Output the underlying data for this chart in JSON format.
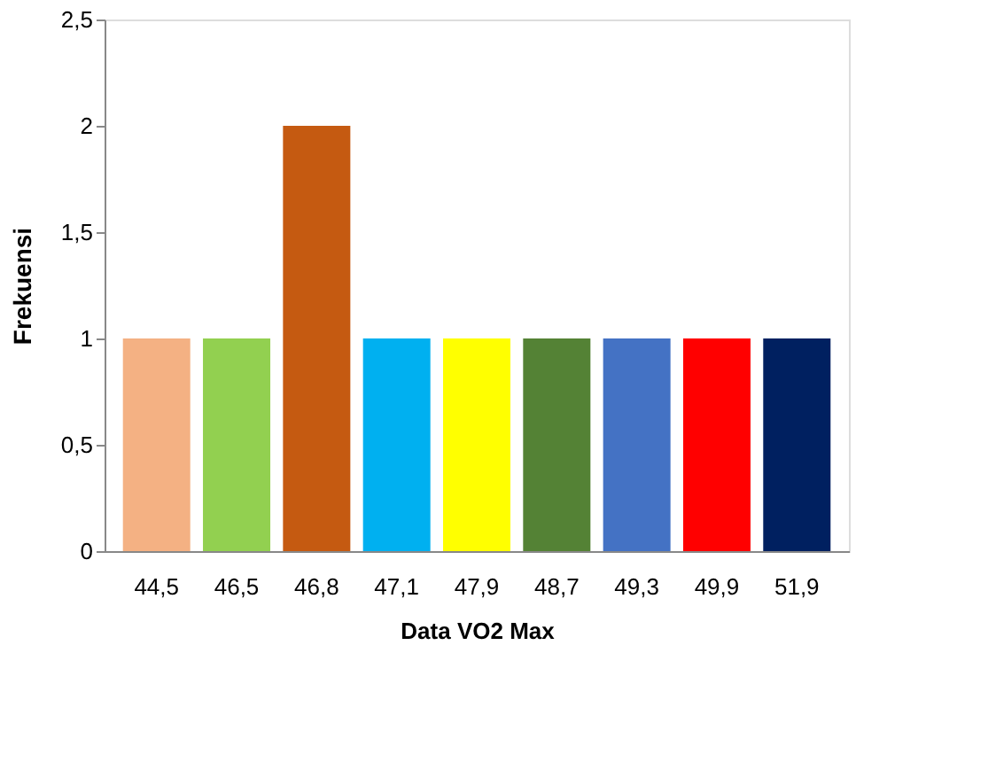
{
  "chart_data": {
    "type": "bar",
    "categories": [
      "44,5",
      "46,5",
      "46,8",
      "47,1",
      "47,9",
      "48,7",
      "49,3",
      "49,9",
      "51,9"
    ],
    "values": [
      1,
      1,
      2,
      1,
      1,
      1,
      1,
      1,
      1
    ],
    "colors": [
      "#f4b183",
      "#92d050",
      "#c55a11",
      "#00b0f0",
      "#ffff00",
      "#548235",
      "#4472c4",
      "#ff0000",
      "#002060"
    ],
    "xlabel": "Data VO2 Max",
    "ylabel": "Frekuensi",
    "ylim": [
      0,
      2.5
    ],
    "yticks": [
      0,
      {
        "value": 0.5,
        "label": "0,5"
      },
      1,
      {
        "value": 1.5,
        "label": "1,5"
      },
      2,
      {
        "value": 2.5,
        "label": "2,5"
      }
    ],
    "grid": false,
    "legend": false
  }
}
